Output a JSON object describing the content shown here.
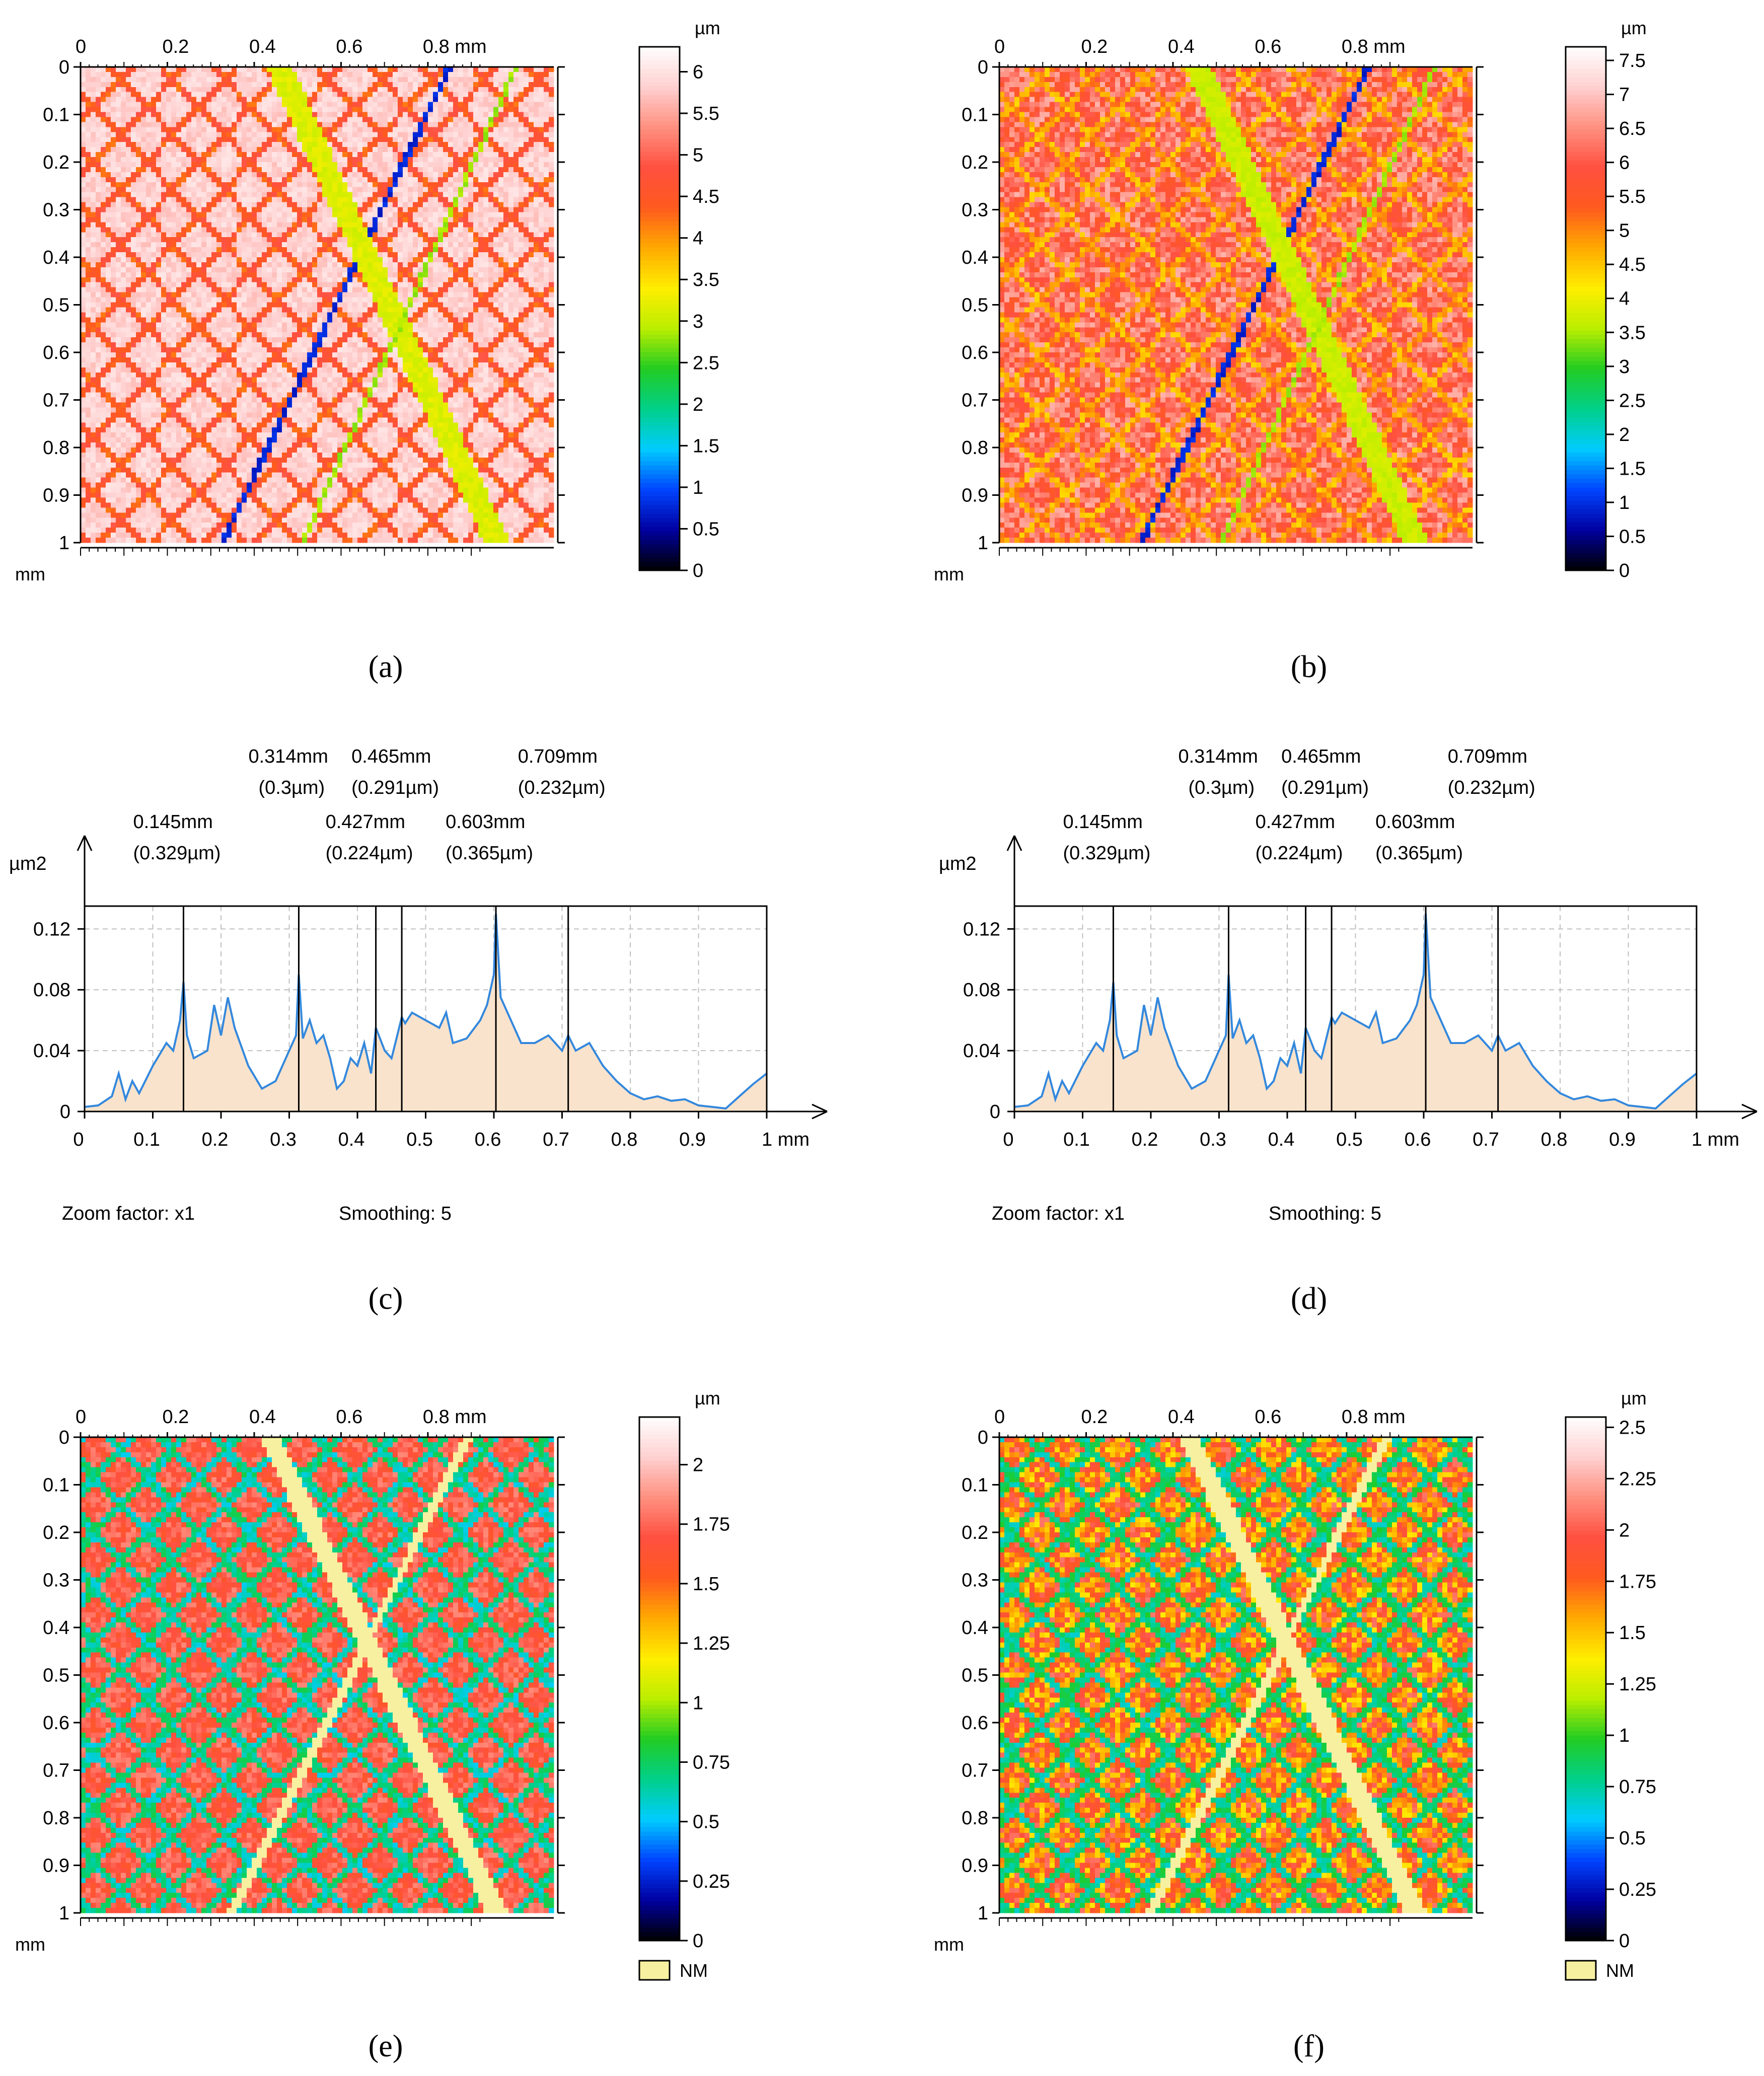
{
  "panels": [
    {
      "id": "a",
      "caption": "(a)",
      "chart_data": {
        "type": "heatmap",
        "description_axes": true,
        "x_ticks": [
          "0",
          "0.2",
          "0.4",
          "0.6",
          "0.8 mm"
        ],
        "y_ticks": [
          "0",
          "0.1",
          "0.2",
          "0.3",
          "0.4",
          "0.5",
          "0.6",
          "0.7",
          "0.8",
          "0.9",
          "1"
        ],
        "y_unit": "mm",
        "xlim": [
          0,
          1
        ],
        "ylim": [
          0,
          1
        ],
        "colorbar": {
          "unit": "µm",
          "range": [
            0,
            6.3
          ],
          "ticks": [
            "0",
            "0.5",
            "1",
            "1.5",
            "2",
            "2.5",
            "3",
            "3.5",
            "4",
            "4.5",
            "5",
            "5.5",
            "6"
          ],
          "tick_values": [
            0,
            0.5,
            1,
            1.5,
            2,
            2.5,
            3,
            3.5,
            4,
            4.5,
            5,
            5.5,
            6
          ]
        },
        "background_level": 0.93,
        "noise": 0.03,
        "features": [
          {
            "kind": "groove",
            "x0": 0.78,
            "x1": 0.3,
            "halfwidth": 0.006,
            "level": 0.12
          },
          {
            "kind": "groove",
            "x0": 0.42,
            "x1": 0.88,
            "halfwidth": 0.025,
            "level": 0.5
          },
          {
            "kind": "groove",
            "x0": 0.92,
            "x1": 0.47,
            "halfwidth": 0.005,
            "level": 0.45
          }
        ],
        "scratch_level": 0.72,
        "scratch_halfwidth": 0.01,
        "scratch_spacing": 0.11
      }
    },
    {
      "id": "b",
      "caption": "(b)",
      "chart_data": {
        "type": "heatmap",
        "x_ticks": [
          "0",
          "0.2",
          "0.4",
          "0.6",
          "0.8 mm"
        ],
        "y_ticks": [
          "0",
          "0.1",
          "0.2",
          "0.3",
          "0.4",
          "0.5",
          "0.6",
          "0.7",
          "0.8",
          "0.9",
          "1"
        ],
        "y_unit": "mm",
        "xlim": [
          0,
          1
        ],
        "ylim": [
          0,
          1
        ],
        "colorbar": {
          "unit": "µm",
          "range": [
            0,
            7.7
          ],
          "ticks": [
            "0",
            "0.5",
            "1",
            "1.5",
            "2",
            "2.5",
            "3",
            "3.5",
            "4",
            "4.5",
            "5",
            "5.5",
            "6",
            "6.5",
            "7",
            "7.5"
          ],
          "tick_values": [
            0,
            0.5,
            1,
            1.5,
            2,
            2.5,
            3,
            3.5,
            4,
            4.5,
            5,
            5.5,
            6,
            6.5,
            7,
            7.5
          ]
        },
        "background_level": 0.8,
        "noise": 0.09,
        "features": [
          {
            "kind": "groove",
            "x0": 0.78,
            "x1": 0.3,
            "halfwidth": 0.006,
            "level": 0.12
          },
          {
            "kind": "groove",
            "x0": 0.42,
            "x1": 0.88,
            "halfwidth": 0.025,
            "level": 0.48
          },
          {
            "kind": "groove",
            "x0": 0.92,
            "x1": 0.47,
            "halfwidth": 0.005,
            "level": 0.45
          }
        ],
        "scratch_level": 0.62,
        "scratch_halfwidth": 0.01,
        "scratch_spacing": 0.11
      }
    },
    {
      "id": "c",
      "caption": "(c)",
      "chart_data": {
        "type": "area",
        "ylabel": "µm2",
        "xlabel": "mm",
        "xlim": [
          0,
          1
        ],
        "ylim": [
          0,
          0.135
        ],
        "x_ticks": [
          0,
          0.1,
          0.2,
          0.3,
          0.4,
          0.5,
          0.6,
          0.7,
          0.8,
          0.9,
          1
        ],
        "x_tick_labels": [
          "0",
          "0.1",
          "0.2",
          "0.3",
          "0.4",
          "0.5",
          "0.6",
          "0.7",
          "0.8",
          "0.9",
          "1 mm"
        ],
        "y_ticks": [
          0,
          0.04,
          0.08,
          0.12
        ],
        "y_tick_labels": [
          "0",
          "0.04",
          "0.08",
          "0.12"
        ],
        "grid": true,
        "series": [
          {
            "color": "#3388dd",
            "fill": "#fae3cc",
            "x": [
              0,
              0.02,
              0.04,
              0.05,
              0.06,
              0.07,
              0.08,
              0.1,
              0.12,
              0.13,
              0.14,
              0.145,
              0.15,
              0.16,
              0.18,
              0.19,
              0.2,
              0.21,
              0.22,
              0.24,
              0.26,
              0.28,
              0.3,
              0.31,
              0.314,
              0.32,
              0.33,
              0.34,
              0.35,
              0.36,
              0.37,
              0.38,
              0.39,
              0.4,
              0.41,
              0.42,
              0.427,
              0.44,
              0.45,
              0.465,
              0.47,
              0.48,
              0.5,
              0.52,
              0.53,
              0.54,
              0.56,
              0.58,
              0.59,
              0.6,
              0.603,
              0.61,
              0.62,
              0.64,
              0.66,
              0.68,
              0.7,
              0.709,
              0.72,
              0.74,
              0.76,
              0.78,
              0.8,
              0.82,
              0.84,
              0.86,
              0.88,
              0.9,
              0.92,
              0.94,
              0.96,
              0.98,
              1.0
            ],
            "y": [
              0.003,
              0.004,
              0.01,
              0.025,
              0.008,
              0.02,
              0.012,
              0.03,
              0.045,
              0.04,
              0.06,
              0.085,
              0.05,
              0.035,
              0.04,
              0.07,
              0.05,
              0.075,
              0.055,
              0.03,
              0.015,
              0.02,
              0.04,
              0.05,
              0.09,
              0.048,
              0.06,
              0.045,
              0.05,
              0.035,
              0.015,
              0.02,
              0.035,
              0.03,
              0.045,
              0.025,
              0.055,
              0.04,
              0.035,
              0.062,
              0.058,
              0.065,
              0.06,
              0.055,
              0.065,
              0.045,
              0.048,
              0.06,
              0.07,
              0.09,
              0.13,
              0.075,
              0.065,
              0.045,
              0.045,
              0.05,
              0.04,
              0.05,
              0.04,
              0.045,
              0.03,
              0.02,
              0.012,
              0.008,
              0.01,
              0.007,
              0.008,
              0.004,
              0.003,
              0.002,
              0.01,
              0.018,
              0.025
            ]
          }
        ],
        "markers": [
          {
            "x": 0.145,
            "label": "0.145mm",
            "sublabel": "(0.329µm)",
            "row": 2
          },
          {
            "x": 0.314,
            "label": "0.314mm",
            "sublabel": "(0.3µm)",
            "row": 1
          },
          {
            "x": 0.427,
            "label": "0.427mm",
            "sublabel": "(0.224µm)",
            "row": 2
          },
          {
            "x": 0.465,
            "label": "0.465mm",
            "sublabel": "(0.291µm)",
            "row": 1
          },
          {
            "x": 0.603,
            "label": "0.603mm",
            "sublabel": "(0.365µm)",
            "row": 2
          },
          {
            "x": 0.709,
            "label": "0.709mm",
            "sublabel": "(0.232µm)",
            "row": 1
          }
        ],
        "footer_left": "Zoom factor: x1",
        "footer_right": "Smoothing: 5"
      }
    },
    {
      "id": "d",
      "caption": "(d)",
      "chart_data": {
        "type": "area",
        "ylabel": "µm2",
        "xlabel": "mm",
        "xlim": [
          0,
          1
        ],
        "ylim": [
          0,
          0.135
        ],
        "x_ticks": [
          0,
          0.1,
          0.2,
          0.3,
          0.4,
          0.5,
          0.6,
          0.7,
          0.8,
          0.9,
          1
        ],
        "x_tick_labels": [
          "0",
          "0.1",
          "0.2",
          "0.3",
          "0.4",
          "0.5",
          "0.6",
          "0.7",
          "0.8",
          "0.9",
          "1 mm"
        ],
        "y_ticks": [
          0,
          0.04,
          0.08,
          0.12
        ],
        "y_tick_labels": [
          "0",
          "0.04",
          "0.08",
          "0.12"
        ],
        "grid": true,
        "series": [
          {
            "color": "#3388dd",
            "fill": "#fae3cc",
            "x": [
              0,
              0.02,
              0.04,
              0.05,
              0.06,
              0.07,
              0.08,
              0.1,
              0.12,
              0.13,
              0.14,
              0.145,
              0.15,
              0.16,
              0.18,
              0.19,
              0.2,
              0.21,
              0.22,
              0.24,
              0.26,
              0.28,
              0.3,
              0.31,
              0.314,
              0.32,
              0.33,
              0.34,
              0.35,
              0.36,
              0.37,
              0.38,
              0.39,
              0.4,
              0.41,
              0.42,
              0.427,
              0.44,
              0.45,
              0.465,
              0.47,
              0.48,
              0.5,
              0.52,
              0.53,
              0.54,
              0.56,
              0.58,
              0.59,
              0.6,
              0.603,
              0.61,
              0.62,
              0.64,
              0.66,
              0.68,
              0.7,
              0.709,
              0.72,
              0.74,
              0.76,
              0.78,
              0.8,
              0.82,
              0.84,
              0.86,
              0.88,
              0.9,
              0.92,
              0.94,
              0.96,
              0.98,
              1.0
            ],
            "y": [
              0.003,
              0.004,
              0.01,
              0.025,
              0.008,
              0.02,
              0.012,
              0.03,
              0.045,
              0.04,
              0.06,
              0.085,
              0.05,
              0.035,
              0.04,
              0.07,
              0.05,
              0.075,
              0.055,
              0.03,
              0.015,
              0.02,
              0.04,
              0.05,
              0.09,
              0.048,
              0.06,
              0.045,
              0.05,
              0.035,
              0.015,
              0.02,
              0.035,
              0.03,
              0.045,
              0.025,
              0.055,
              0.04,
              0.035,
              0.062,
              0.058,
              0.065,
              0.06,
              0.055,
              0.065,
              0.045,
              0.048,
              0.06,
              0.07,
              0.09,
              0.13,
              0.075,
              0.065,
              0.045,
              0.045,
              0.05,
              0.04,
              0.05,
              0.04,
              0.045,
              0.03,
              0.02,
              0.012,
              0.008,
              0.01,
              0.007,
              0.008,
              0.004,
              0.003,
              0.002,
              0.01,
              0.018,
              0.025
            ]
          }
        ],
        "markers": [
          {
            "x": 0.145,
            "label": "0.145mm",
            "sublabel": "(0.329µm)",
            "row": 2
          },
          {
            "x": 0.314,
            "label": "0.314mm",
            "sublabel": "(0.3µm)",
            "row": 1
          },
          {
            "x": 0.427,
            "label": "0.427mm",
            "sublabel": "(0.224µm)",
            "row": 2
          },
          {
            "x": 0.465,
            "label": "0.465mm",
            "sublabel": "(0.291µm)",
            "row": 1
          },
          {
            "x": 0.603,
            "label": "0.603mm",
            "sublabel": "(0.365µm)",
            "row": 2
          },
          {
            "x": 0.709,
            "label": "0.709mm",
            "sublabel": "(0.232µm)",
            "row": 1
          }
        ],
        "footer_left": "Zoom factor: x1",
        "footer_right": "Smoothing: 5"
      }
    },
    {
      "id": "e",
      "caption": "(e)",
      "chart_data": {
        "type": "heatmap",
        "x_ticks": [
          "0",
          "0.2",
          "0.4",
          "0.6",
          "0.8 mm"
        ],
        "y_ticks": [
          "0",
          "0.1",
          "0.2",
          "0.3",
          "0.4",
          "0.5",
          "0.6",
          "0.7",
          "0.8",
          "0.9",
          "1"
        ],
        "y_unit": "mm",
        "xlim": [
          0,
          1
        ],
        "ylim": [
          0,
          1
        ],
        "colorbar": {
          "unit": "µm",
          "range": [
            0,
            2.2
          ],
          "ticks": [
            "0",
            "0.25",
            "0.5",
            "0.75",
            "1",
            "1.25",
            "1.5",
            "1.75",
            "2"
          ],
          "tick_values": [
            0,
            0.25,
            0.5,
            0.75,
            1,
            1.25,
            1.5,
            1.75,
            2
          ],
          "nm_label": "NM",
          "nm_color": "#f7f0a0"
        },
        "background_level": 0.78,
        "noise": 0.06,
        "features": [
          {
            "kind": "nm",
            "x0": 0.4,
            "x1": 0.88,
            "halfwidth": 0.02
          },
          {
            "kind": "nm",
            "x0": 0.82,
            "x1": 0.32,
            "halfwidth": 0.009
          }
        ],
        "scratch_level": 0.3,
        "scratch_halfwidth": 0.012,
        "scratch_spacing": 0.11
      }
    },
    {
      "id": "f",
      "caption": "(f)",
      "chart_data": {
        "type": "heatmap",
        "x_ticks": [
          "0",
          "0.2",
          "0.4",
          "0.6",
          "0.8 mm"
        ],
        "y_ticks": [
          "0",
          "0.1",
          "0.2",
          "0.3",
          "0.4",
          "0.5",
          "0.6",
          "0.7",
          "0.8",
          "0.9",
          "1"
        ],
        "y_unit": "mm",
        "xlim": [
          0,
          1
        ],
        "ylim": [
          0,
          1
        ],
        "colorbar": {
          "unit": "µm",
          "range": [
            0,
            2.55
          ],
          "ticks": [
            "0",
            "0.25",
            "0.5",
            "0.75",
            "1",
            "1.25",
            "1.5",
            "1.75",
            "2",
            "2.25",
            "2.5"
          ],
          "tick_values": [
            0,
            0.25,
            0.5,
            0.75,
            1,
            1.25,
            1.5,
            1.75,
            2,
            2.25,
            2.5
          ],
          "nm_label": "NM",
          "nm_color": "#f7f0a0"
        },
        "background_level": 0.68,
        "noise": 0.14,
        "features": [
          {
            "kind": "nm",
            "x0": 0.4,
            "x1": 0.88,
            "halfwidth": 0.02
          },
          {
            "kind": "nm",
            "x0": 0.82,
            "x1": 0.32,
            "halfwidth": 0.009
          }
        ],
        "scratch_level": 0.32,
        "scratch_halfwidth": 0.012,
        "scratch_spacing": 0.11
      }
    }
  ],
  "colormap": [
    "#000000",
    "#0000a0",
    "#0044ff",
    "#00ccff",
    "#00d08a",
    "#22cc22",
    "#bbee00",
    "#ffee00",
    "#ffaa00",
    "#ff5a1e",
    "#ff5040",
    "#ff9080",
    "#ffd0d0",
    "#ffffff"
  ]
}
